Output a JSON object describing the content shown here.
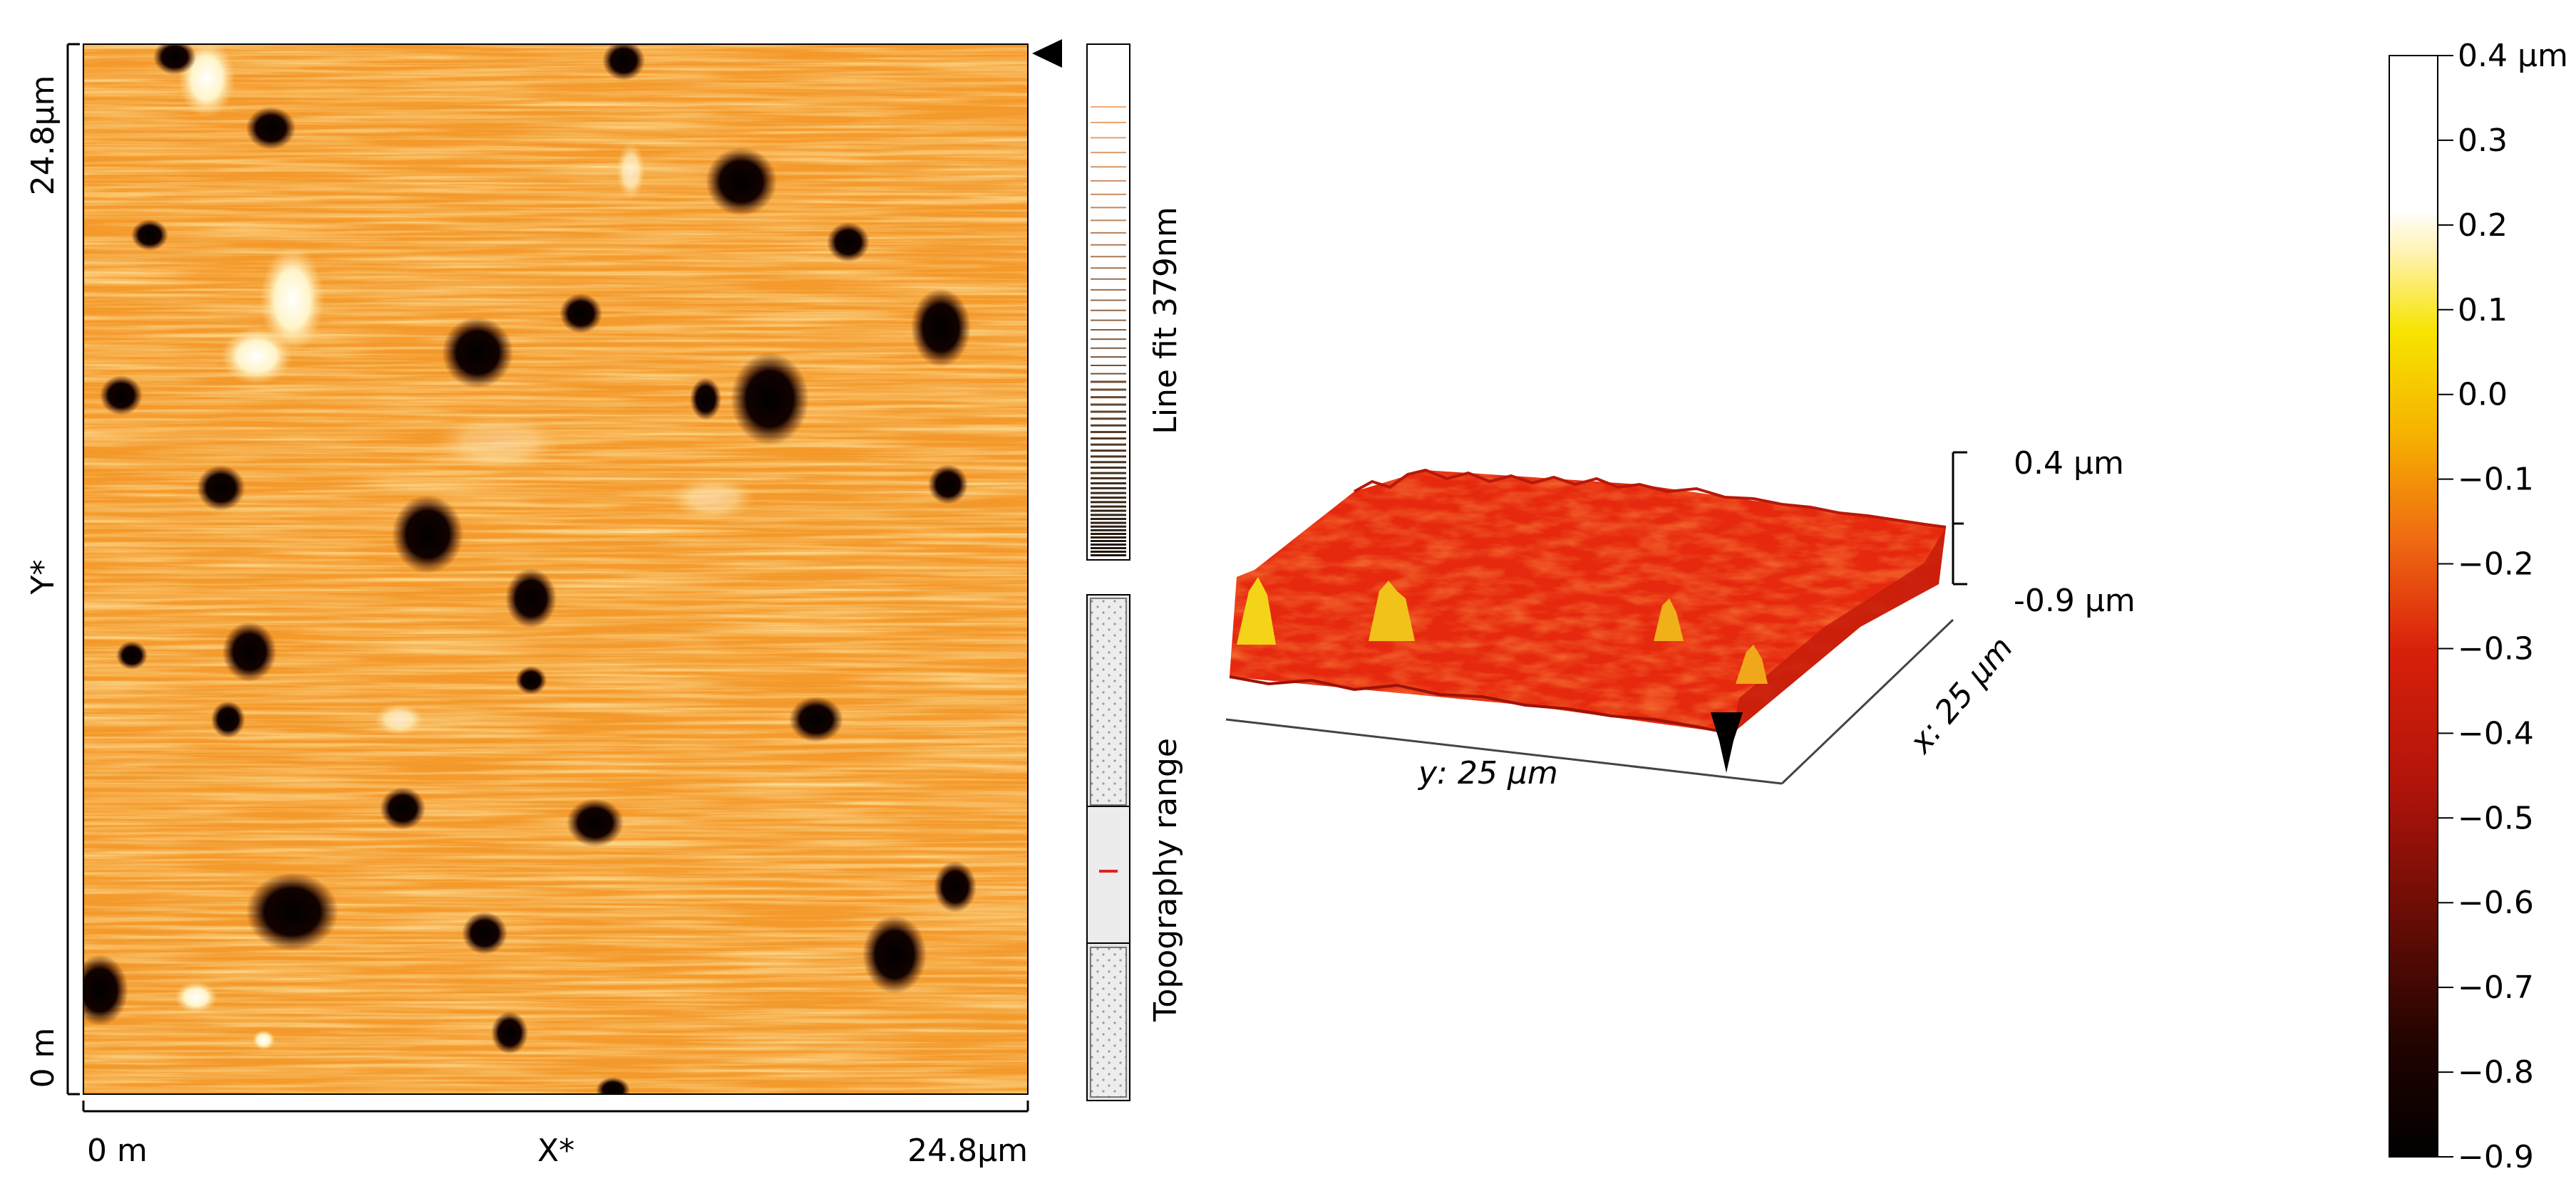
{
  "afm_map": {
    "y_top_label": "24.8µm",
    "y_mid_label": "Y*",
    "y_bottom_label": "0 m",
    "x_left_label": "0 m",
    "x_mid_label": "X*",
    "x_right_label": "24.8µm"
  },
  "side_panel": {
    "linefit_label": "Line fit 379nm",
    "topography_label": "Topography range"
  },
  "surface_3d": {
    "z_top_label": "0.4 µm",
    "z_bottom_label": "-0.9 µm",
    "y_axis_label": "y: 25 µm",
    "x_axis_label": "x: 25 µm"
  },
  "colorbar": {
    "top_label": "0.4 µm",
    "ticks": [
      "0.3",
      "0.2",
      "0.1",
      "0.0",
      "−0.1",
      "−0.2",
      "−0.3",
      "−0.4",
      "−0.5",
      "−0.6",
      "−0.7",
      "−0.8",
      "−0.9"
    ],
    "tick_values": [
      0.3,
      0.2,
      0.1,
      0.0,
      -0.1,
      -0.2,
      -0.3,
      -0.4,
      -0.5,
      -0.6,
      -0.7,
      -0.8,
      -0.9
    ],
    "range": [
      -0.9,
      0.4
    ],
    "colors": {
      "white": "#ffffff",
      "pale_yellow": "#fff2b0",
      "yellow": "#f7e400",
      "orange": "#f39a12",
      "red": "#d8200b",
      "dark_red": "#6a0d06",
      "black": "#000000"
    }
  }
}
